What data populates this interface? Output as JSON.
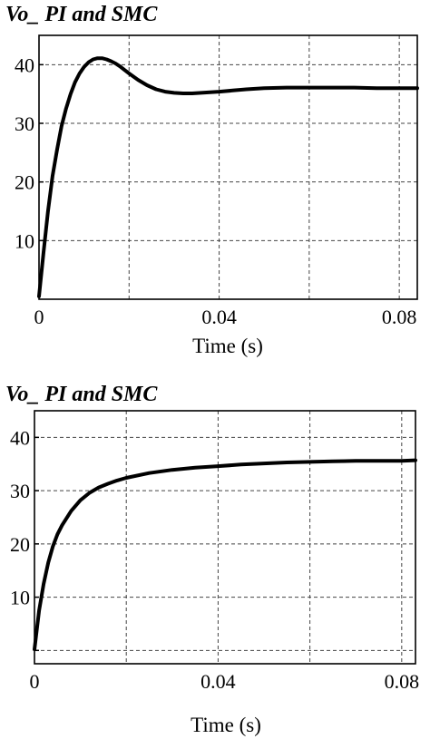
{
  "chart_data": [
    {
      "type": "line",
      "title": "Vo_ PI and SMC",
      "xlabel": "Time (s)",
      "ylabel": "",
      "xlim": [
        0,
        0.084
      ],
      "ylim": [
        0,
        45
      ],
      "xticks": [
        0,
        0.04,
        0.08
      ],
      "xtick_labels": [
        "0",
        "0.04",
        "0.08"
      ],
      "yticks": [
        10,
        20,
        30,
        40
      ],
      "ytick_labels": [
        "10",
        "20",
        "30",
        "40"
      ],
      "grid": true,
      "series": [
        {
          "x": [
            0,
            0.001,
            0.002,
            0.003,
            0.004,
            0.005,
            0.006,
            0.007,
            0.008,
            0.009,
            0.01,
            0.011,
            0.012,
            0.013,
            0.014,
            0.015,
            0.016,
            0.017,
            0.018,
            0.019,
            0.02,
            0.022,
            0.024,
            0.026,
            0.028,
            0.03,
            0.032,
            0.034,
            0.036,
            0.038,
            0.04,
            0.043,
            0.046,
            0.05,
            0.055,
            0.06,
            0.065,
            0.07,
            0.075,
            0.08,
            0.084
          ],
          "y": [
            0.5,
            8,
            15,
            21,
            25.5,
            29.5,
            32.5,
            35,
            37,
            38.5,
            39.6,
            40.4,
            40.9,
            41.1,
            41.1,
            40.9,
            40.6,
            40.2,
            39.7,
            39.1,
            38.5,
            37.4,
            36.5,
            35.8,
            35.4,
            35.2,
            35.1,
            35.1,
            35.2,
            35.3,
            35.4,
            35.6,
            35.8,
            36.0,
            36.1,
            36.1,
            36.1,
            36.1,
            36.0,
            36.0,
            36.0
          ]
        }
      ]
    },
    {
      "type": "line",
      "title": "Vo_ PI and SMC",
      "xlabel": "Time (s)",
      "ylabel": "",
      "xlim": [
        0,
        0.083
      ],
      "ylim": [
        -2.5,
        45
      ],
      "xticks": [
        0,
        0.04,
        0.08
      ],
      "xtick_labels": [
        "0",
        "0.04",
        "0.08"
      ],
      "yticks": [
        0,
        10,
        20,
        30,
        40
      ],
      "ytick_labels": [
        "",
        "10",
        "20",
        "30",
        "40"
      ],
      "grid": true,
      "series": [
        {
          "x": [
            0,
            0.001,
            0.002,
            0.003,
            0.004,
            0.005,
            0.006,
            0.008,
            0.01,
            0.012,
            0.014,
            0.016,
            0.018,
            0.02,
            0.025,
            0.03,
            0.035,
            0.04,
            0.045,
            0.05,
            0.055,
            0.06,
            0.065,
            0.07,
            0.075,
            0.08,
            0.083
          ],
          "y": [
            0.2,
            7.5,
            12.5,
            16.5,
            19.5,
            21.8,
            23.5,
            26.2,
            28.2,
            29.6,
            30.6,
            31.3,
            31.9,
            32.4,
            33.3,
            33.9,
            34.3,
            34.6,
            34.9,
            35.1,
            35.3,
            35.4,
            35.5,
            35.6,
            35.6,
            35.6,
            35.7
          ]
        }
      ]
    }
  ]
}
